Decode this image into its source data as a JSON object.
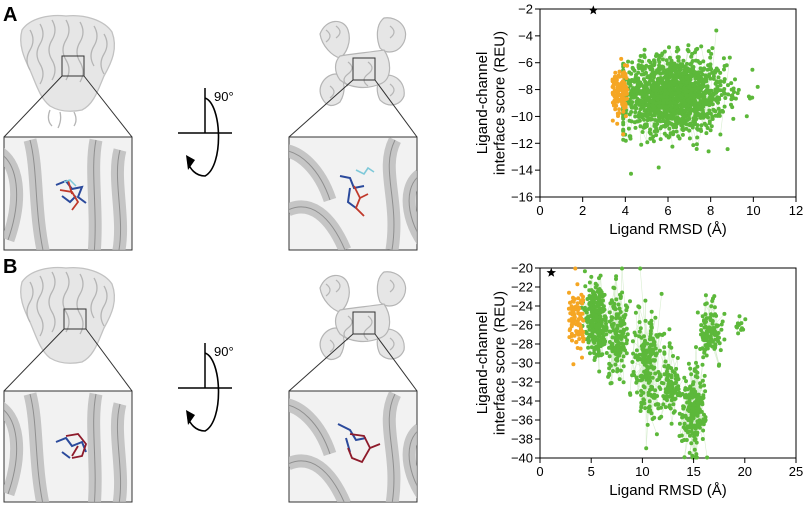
{
  "figure": {
    "panels": [
      {
        "letter": "A",
        "rotation_label": "90°"
      },
      {
        "letter": "B",
        "rotation_label": "90°"
      }
    ]
  },
  "colors": {
    "green": "#5cb83a",
    "green_line": "#d8eed0",
    "orange": "#f5a623",
    "protein_gray": "#bdbdbd",
    "ligand_blue": "#2b4a9c",
    "ligand_red": "#c0392b",
    "ligand_cyan": "#7fc9d9"
  },
  "chart_data": [
    {
      "type": "scatter",
      "panel": "A",
      "xlabel": "Ligand RMSD (Å)",
      "ylabel": "Ligand-channel interface score (REU)",
      "ylabel_lines": [
        "Ligand-channel",
        "interface score (REU)"
      ],
      "xlim": [
        0,
        12
      ],
      "ylim": [
        -16,
        -2
      ],
      "xticks": [
        0,
        2,
        4,
        6,
        8,
        10,
        12
      ],
      "yticks": [
        -16,
        -14,
        -12,
        -10,
        -8,
        -6,
        -4,
        -2
      ],
      "native": {
        "x": 2.5,
        "y": -2.1,
        "marker": "star"
      },
      "series": [
        {
          "color_key": "orange",
          "cluster": {
            "x_range": [
              3.4,
              4.1
            ],
            "y_center": -8.1,
            "y_sd": 0.8,
            "n": 140
          }
        },
        {
          "color_key": "green",
          "cluster": {
            "x_center": 6.2,
            "x_sd": 1.25,
            "x_min": 3.9,
            "x_max": 10.4,
            "y_center": -8.4,
            "y_sd": 1.4,
            "n": 1500
          }
        }
      ]
    },
    {
      "type": "scatter",
      "panel": "B",
      "xlabel": "Ligand RMSD (Å)",
      "ylabel": "Ligand-channel interface score (REU)",
      "ylabel_lines": [
        "Ligand-channel",
        "interface score (REU)"
      ],
      "xlim": [
        0,
        25
      ],
      "ylim": [
        -40,
        -20
      ],
      "xticks": [
        0,
        5,
        10,
        15,
        20,
        25
      ],
      "yticks": [
        -40,
        -38,
        -36,
        -34,
        -32,
        -30,
        -28,
        -26,
        -24,
        -22,
        -20
      ],
      "native": {
        "x": 1.1,
        "y": -20.5,
        "marker": "star"
      },
      "series": [
        {
          "color_key": "orange",
          "cluster": {
            "x_range": [
              2.8,
              4.3
            ],
            "y_center": -25.5,
            "y_sd": 1.6,
            "n": 90
          }
        },
        {
          "color_key": "green",
          "clusters": [
            {
              "x_center": 5.5,
              "x_sd": 0.55,
              "y_center": -25.5,
              "y_sd": 1.8,
              "n": 300
            },
            {
              "x_center": 7.6,
              "x_sd": 0.5,
              "y_center": -27.2,
              "y_sd": 2.6,
              "n": 160
            },
            {
              "x_center": 10.6,
              "x_sd": 0.7,
              "y_center": -30.0,
              "y_sd": 2.8,
              "n": 200
            },
            {
              "x_center": 12.7,
              "x_sd": 0.5,
              "y_center": -32.5,
              "y_sd": 1.8,
              "n": 100
            },
            {
              "x_center": 15.0,
              "x_sd": 0.55,
              "y_center": -35.0,
              "y_sd": 2.2,
              "n": 220
            },
            {
              "x_center": 16.6,
              "x_sd": 0.55,
              "y_center": -26.8,
              "y_sd": 1.6,
              "n": 120
            },
            {
              "x_center": 19.4,
              "x_sd": 0.35,
              "y_center": -26.2,
              "y_sd": 0.7,
              "n": 12
            }
          ]
        }
      ]
    }
  ]
}
